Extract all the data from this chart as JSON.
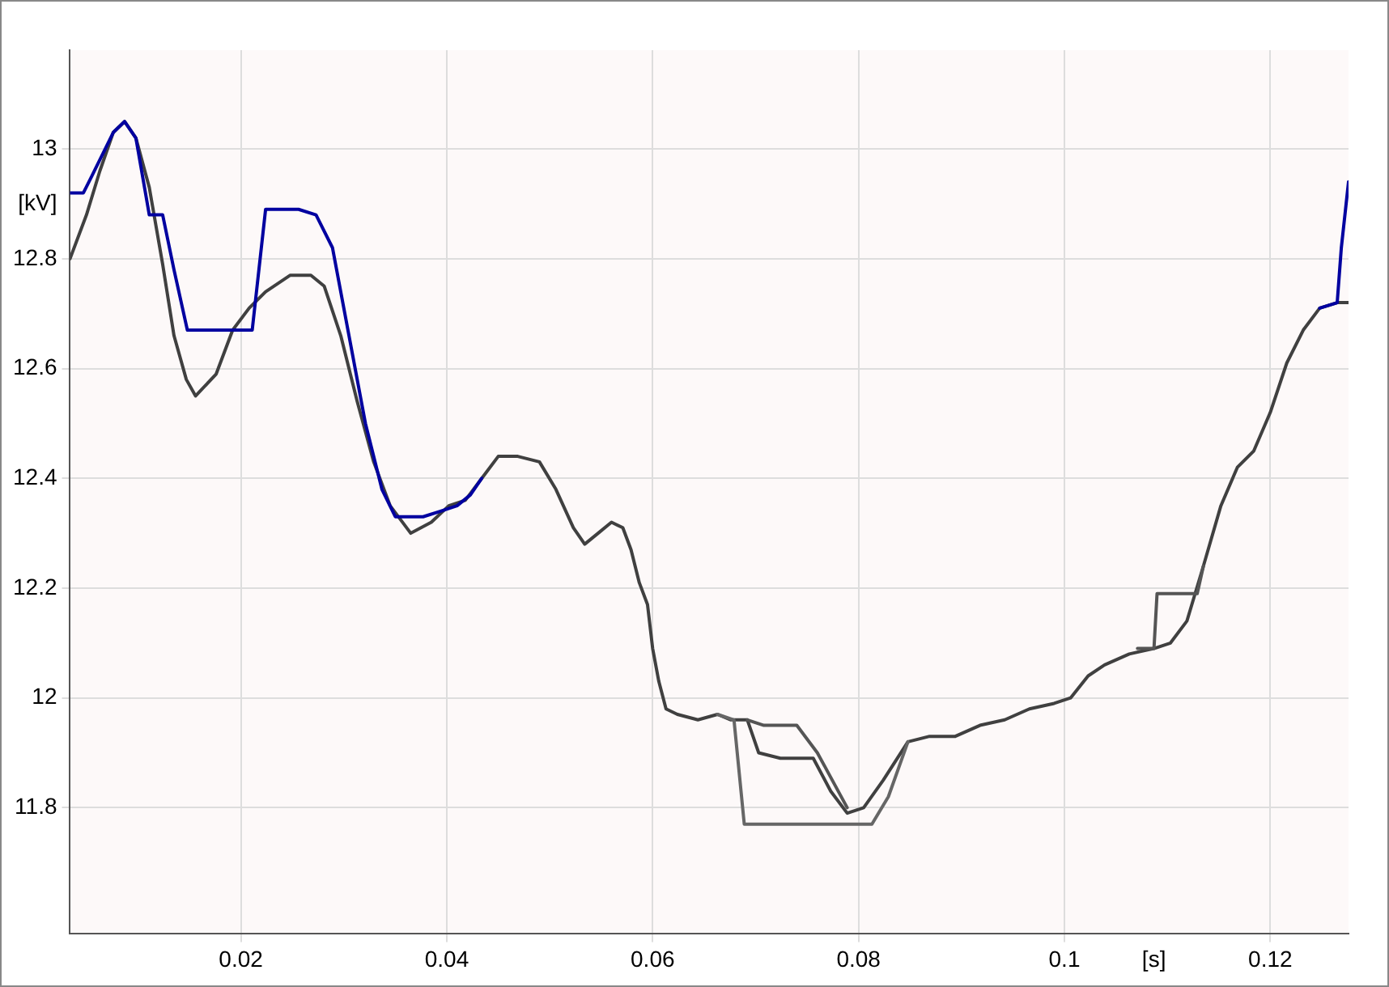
{
  "chart_data": {
    "type": "line",
    "xlim": [
      0.0034,
      0.1276
    ],
    "xticks": [
      0.02,
      0.04,
      0.06,
      0.08,
      0.1,
      {
        "value": 0.1087,
        "label": "[s]"
      },
      0.12
    ],
    "ylim": [
      11.57,
      13.18
    ],
    "yticks": [
      11.8,
      12,
      12.2,
      12.4,
      12.6,
      12.8,
      {
        "value": 12.9,
        "label": "[kV]"
      },
      13
    ],
    "grid": true,
    "legend": false,
    "marker": "none",
    "line_style": "solid",
    "series": [
      {
        "color": "#0000a0",
        "x": [
          0.0034,
          0.0047,
          0.0055,
          0.0076,
          0.0087,
          0.0098,
          0.0111,
          0.0124,
          0.0135,
          0.0148,
          0.0176,
          0.0211,
          0.0224,
          0.0256,
          0.0273,
          0.0289,
          0.0305,
          0.0321,
          0.0337,
          0.035,
          0.0377,
          0.0394,
          0.041,
          0.0423,
          0.0434,
          0.08,
          0.1248,
          0.1265,
          0.1269,
          0.1276
        ],
        "values": [
          12.92,
          12.92,
          12.95,
          13.03,
          13.05,
          13.02,
          12.88,
          12.88,
          12.78,
          12.67,
          12.67,
          12.67,
          12.89,
          12.89,
          12.88,
          12.82,
          12.66,
          12.5,
          12.38,
          12.33,
          12.33,
          12.34,
          12.35,
          12.37,
          12.4,
          null,
          12.71,
          12.72,
          12.82,
          12.94
        ]
      },
      {
        "color": "#666666",
        "x": [
          0.0663,
          0.0679,
          0.0689,
          0.0813,
          0.0829,
          0.0848
        ],
        "values": [
          11.97,
          11.96,
          11.77,
          11.77,
          11.82,
          11.92
        ]
      },
      {
        "color": "#555555",
        "x": [
          0.0692,
          0.0708,
          0.074,
          0.076,
          0.0789,
          0.09,
          0.1071,
          0.1087,
          0.109,
          0.1129,
          0.1135
        ],
        "values": [
          11.96,
          11.95,
          11.95,
          11.9,
          11.8,
          null,
          12.09,
          12.09,
          12.19,
          12.19,
          12.24
        ]
      },
      {
        "color": "#404040",
        "x": [
          0.0034,
          0.005,
          0.0063,
          0.0076,
          0.0087,
          0.0098,
          0.0111,
          0.0124,
          0.0135,
          0.0147,
          0.0156,
          0.0176,
          0.0192,
          0.0208,
          0.0224,
          0.0248,
          0.0268,
          0.0281,
          0.0297,
          0.0313,
          0.0329,
          0.0345,
          0.0365,
          0.0385,
          0.0402,
          0.0418,
          0.0434,
          0.045,
          0.0469,
          0.049,
          0.0506,
          0.0523,
          0.0534,
          0.0547,
          0.056,
          0.0571,
          0.0579,
          0.0587,
          0.0595,
          0.06,
          0.0606,
          0.0613,
          0.0624,
          0.0644,
          0.0663,
          0.0676,
          0.0692,
          0.0703,
          0.0724,
          0.0756,
          0.0773,
          0.0789,
          0.0805,
          0.0824,
          0.0848,
          0.0869,
          0.0894,
          0.0918,
          0.0942,
          0.0966,
          0.099,
          0.1006,
          0.1023,
          0.1039,
          0.1063,
          0.1087,
          0.1103,
          0.1119,
          0.1135,
          0.1152,
          0.1168,
          0.1184,
          0.12,
          0.1216,
          0.1232,
          0.1248,
          0.1265,
          0.1276
        ],
        "values": [
          12.8,
          12.88,
          12.96,
          13.03,
          13.05,
          13.02,
          12.93,
          12.79,
          12.66,
          12.58,
          12.55,
          12.59,
          12.67,
          12.71,
          12.74,
          12.77,
          12.77,
          12.75,
          12.66,
          12.54,
          12.43,
          12.35,
          12.3,
          12.32,
          12.35,
          12.36,
          12.4,
          12.44,
          12.44,
          12.43,
          12.38,
          12.31,
          12.28,
          12.3,
          12.32,
          12.31,
          12.27,
          12.21,
          12.17,
          12.09,
          12.03,
          11.98,
          11.97,
          11.96,
          11.97,
          11.96,
          11.96,
          11.9,
          11.89,
          11.89,
          11.83,
          11.79,
          11.8,
          11.85,
          11.92,
          11.93,
          11.93,
          11.95,
          11.96,
          11.98,
          11.99,
          12,
          12.04,
          12.06,
          12.08,
          12.09,
          12.1,
          12.14,
          12.24,
          12.35,
          12.42,
          12.45,
          12.52,
          12.61,
          12.67,
          12.71,
          12.72,
          12.72
        ]
      }
    ]
  }
}
